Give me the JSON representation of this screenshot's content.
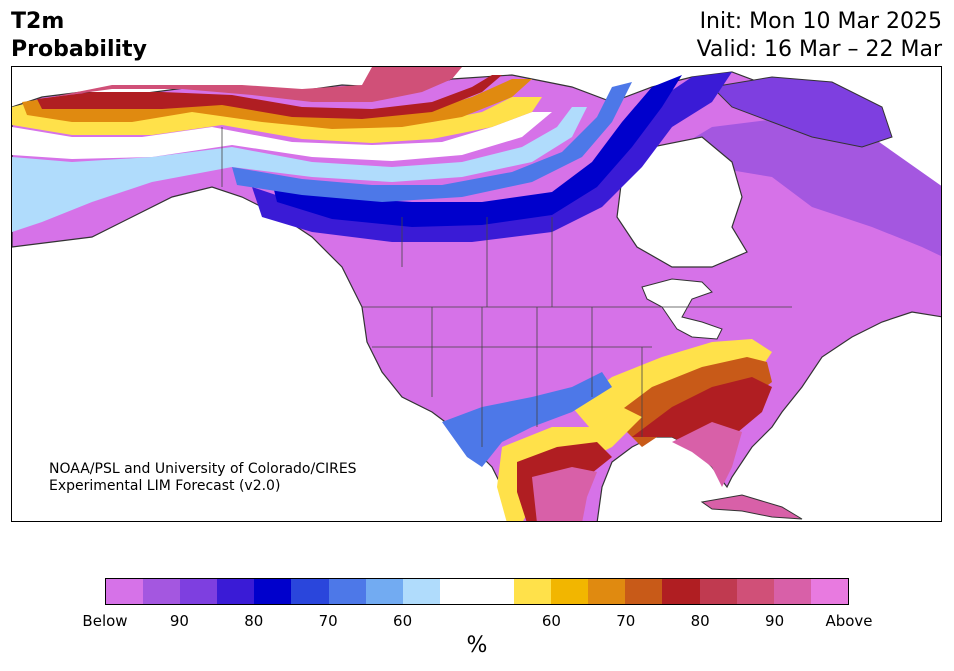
{
  "header": {
    "title_line1": "T2m",
    "title_line2": "Probability",
    "init": "Init: Mon 10 Mar 2025",
    "valid": "Valid: 16 Mar – 22 Mar"
  },
  "credit": {
    "line1": "NOAA/PSL and University of Colorado/CIRES",
    "line2": "Experimental LIM Forecast (v2.0)"
  },
  "colorbar": {
    "colors": [
      "#d672e8",
      "#a457e0",
      "#7e3fe0",
      "#3a1bd6",
      "#0000cc",
      "#2a46dc",
      "#4d78e8",
      "#72abf2",
      "#b0dcfc",
      "#ffffff",
      "#ffffff",
      "#ffe14a",
      "#f2b600",
      "#e08a10",
      "#c85a18",
      "#b01e22",
      "#c03a50",
      "#d05078",
      "#d860a8",
      "#e87ae0"
    ],
    "ticks": [
      "Below",
      "90",
      "80",
      "70",
      "60",
      "60",
      "70",
      "80",
      "90",
      "Above"
    ],
    "unit": "%"
  },
  "map": {
    "colors": {
      "below_strong": "#d672e8",
      "below_90": "#a457e0",
      "below_85": "#7e3fe0",
      "below_80": "#3a1bd6",
      "below_75": "#0000cc",
      "below_70": "#2a46dc",
      "below_65": "#4d78e8",
      "below_60": "#72abf2",
      "below_55": "#b0dcfc",
      "above_55": "#ffe14a",
      "above_60": "#f2b600",
      "above_65": "#e08a10",
      "above_70": "#c85a18",
      "above_75": "#b01e22",
      "above_80": "#c03a50",
      "above_85": "#d05078",
      "above_strong": "#e87ae0",
      "coastline": "#333333"
    }
  }
}
